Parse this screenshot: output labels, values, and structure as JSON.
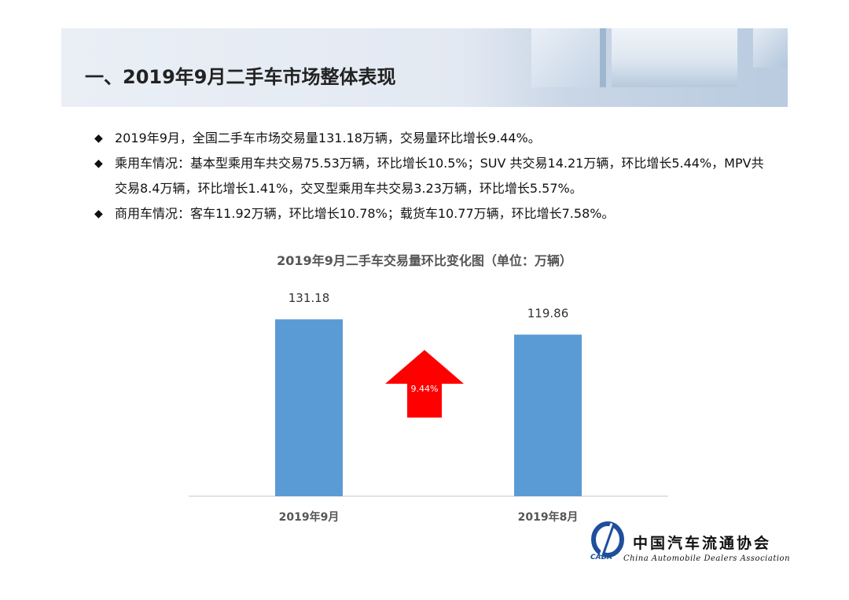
{
  "header": {
    "title": "一、2019年9月二手车市场整体表现"
  },
  "bullets": [
    {
      "symbol": "◆",
      "text": "2019年9月，全国二手车市场交易量131.18万辆，交易量环比增长9.44%。"
    },
    {
      "symbol": "◆",
      "text": "乘用车情况：基本型乘用车共交易75.53万辆，环比增长10.5%；SUV 共交易14.21万辆，环比增长5.44%，MPV共交易8.4万辆，环比增长1.41%，交叉型乘用车共交易3.23万辆，环比增长5.57%。"
    },
    {
      "symbol": "◆",
      "text": "商用车情况：客车11.92万辆，环比增长10.78%；载货车10.77万辆，环比增长7.58%。"
    }
  ],
  "chart_data": {
    "type": "bar",
    "title": "2019年9月二手车交易量环比变化图（单位：万辆）",
    "categories": [
      "2019年9月",
      "2019年8月"
    ],
    "values": [
      131.18,
      119.86
    ],
    "value_labels": [
      "131.18",
      "119.86"
    ],
    "bar_color": "#5b9bd5",
    "ylim": [
      0,
      140
    ],
    "grid": false,
    "annotation": {
      "text": "9.44%",
      "shape": "up-arrow",
      "color": "#ff0000"
    }
  },
  "logo": {
    "name_cn": "中国汽车流通协会",
    "name_en": "China Automobile Dealers Association",
    "mark_text": "CADA",
    "accent": "#1f4f9c"
  }
}
